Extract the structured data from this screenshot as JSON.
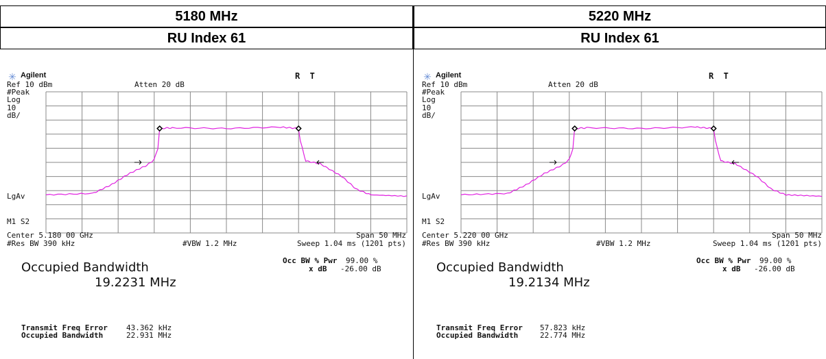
{
  "columns": [
    {
      "frequency": "5180 MHz",
      "ru_index": "RU Index 61",
      "vendor": "Agilent",
      "status": "R  T",
      "ref": "Ref 10 dBm",
      "atten": "Atten 20 dB",
      "side_labels": [
        "#Peak",
        "Log",
        "10",
        "dB/",
        "LgAv",
        "M1 S2"
      ],
      "center": "Center 5.180 00 GHz",
      "span": "Span 50 MHz",
      "res_bw": "#Res BW 390 kHz",
      "vbw": "#VBW 1.2 MHz",
      "sweep": "Sweep 1.04 ms (1201 pts)",
      "occ_label": "Occupied Bandwidth",
      "occ_value": "19.2231 MHz",
      "pwr_label": "Occ BW % Pwr",
      "pwr_value": "99.00 %",
      "xdb_label": "x dB",
      "xdb_value": "-26.00 dB",
      "tfe_label": "Transmit Freq Error",
      "tfe_value": "43.362 kHz",
      "obw_label": "Occupied Bandwidth",
      "obw_value": "22.931 MHz"
    },
    {
      "frequency": "5220 MHz",
      "ru_index": "RU Index 61",
      "vendor": "Agilent",
      "status": "R  T",
      "ref": "Ref 10 dBm",
      "atten": "Atten 20 dB",
      "side_labels": [
        "#Peak",
        "Log",
        "10",
        "dB/",
        "LgAv",
        "M1 S2"
      ],
      "center": "Center 5.220 00 GHz",
      "span": "Span 50 MHz",
      "res_bw": "#Res BW 390 kHz",
      "vbw": "#VBW 1.2 MHz",
      "sweep": "Sweep 1.04 ms (1201 pts)",
      "occ_label": "Occupied Bandwidth",
      "occ_value": "19.2134 MHz",
      "pwr_label": "Occ BW % Pwr",
      "pwr_value": "99.00 %",
      "xdb_label": "x dB",
      "xdb_value": "-26.00 dB",
      "tfe_label": "Transmit Freq Error",
      "tfe_value": "57.823 kHz",
      "obw_label": "Occupied Bandwidth",
      "obw_value": "22.774 MHz"
    }
  ]
}
